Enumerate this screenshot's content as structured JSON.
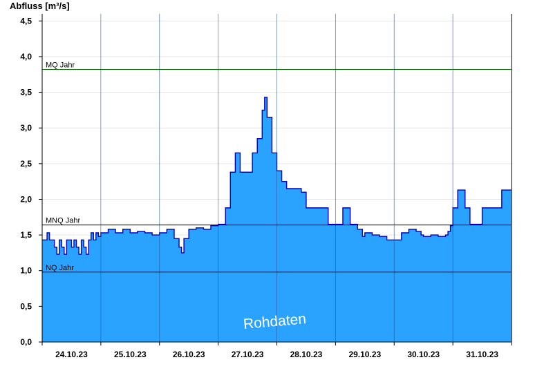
{
  "chart_data": {
    "type": "area",
    "ylabel": "Abfluss [m³/s]",
    "ylim": [
      0,
      4.6
    ],
    "yticks": [
      0.0,
      0.5,
      1.0,
      1.5,
      2.0,
      2.5,
      3.0,
      3.5,
      4.0,
      4.5
    ],
    "ytick_labels": [
      "0,0",
      "0,5",
      "1,0",
      "1,5",
      "2,0",
      "2,5",
      "3,0",
      "3,5",
      "4,0",
      "4,5"
    ],
    "xlim": [
      "2023-10-24T00:00",
      "2023-11-01T00:00"
    ],
    "day_labels": [
      "24.10.23",
      "25.10.23",
      "26.10.23",
      "27.10.23",
      "28.10.23",
      "29.10.23",
      "30.10.23",
      "31.10.23"
    ],
    "grid": true,
    "watermark": "Rohdaten",
    "series": [
      {
        "color": "#29a3ff",
        "line_color": "#0000bb",
        "x": [
          "2023-10-24T00:00",
          "2023-10-24T02:00",
          "2023-10-24T03:00",
          "2023-10-24T05:00",
          "2023-10-24T06:00",
          "2023-10-24T07:00",
          "2023-10-24T08:00",
          "2023-10-24T09:00",
          "2023-10-24T10:00",
          "2023-10-24T11:00",
          "2023-10-24T12:00",
          "2023-10-24T13:00",
          "2023-10-24T14:00",
          "2023-10-24T15:00",
          "2023-10-24T16:00",
          "2023-10-24T17:00",
          "2023-10-24T18:00",
          "2023-10-24T19:00",
          "2023-10-24T20:00",
          "2023-10-24T21:00",
          "2023-10-24T22:00",
          "2023-10-24T23:00",
          "2023-10-25T00:00",
          "2023-10-25T03:00",
          "2023-10-25T06:00",
          "2023-10-25T09:00",
          "2023-10-25T12:00",
          "2023-10-25T15:00",
          "2023-10-25T18:00",
          "2023-10-25T21:00",
          "2023-10-26T00:00",
          "2023-10-26T03:00",
          "2023-10-26T06:00",
          "2023-10-26T08:00",
          "2023-10-26T09:00",
          "2023-10-26T10:00",
          "2023-10-26T12:00",
          "2023-10-26T15:00",
          "2023-10-26T18:00",
          "2023-10-26T21:00",
          "2023-10-27T00:00",
          "2023-10-27T03:00",
          "2023-10-27T05:00",
          "2023-10-27T07:00",
          "2023-10-27T09:00",
          "2023-10-27T12:00",
          "2023-10-27T14:00",
          "2023-10-27T16:00",
          "2023-10-27T18:00",
          "2023-10-27T19:00",
          "2023-10-27T20:00",
          "2023-10-27T22:00",
          "2023-10-28T00:00",
          "2023-10-28T02:00",
          "2023-10-28T04:00",
          "2023-10-28T06:00",
          "2023-10-28T10:00",
          "2023-10-28T12:00",
          "2023-10-28T15:00",
          "2023-10-28T18:00",
          "2023-10-28T21:00",
          "2023-10-28T23:00",
          "2023-10-29T00:00",
          "2023-10-29T03:00",
          "2023-10-29T06:00",
          "2023-10-29T09:00",
          "2023-10-29T11:00",
          "2023-10-29T12:00",
          "2023-10-29T15:00",
          "2023-10-29T18:00",
          "2023-10-29T21:00",
          "2023-10-30T00:00",
          "2023-10-30T03:00",
          "2023-10-30T06:00",
          "2023-10-30T09:00",
          "2023-10-30T11:00",
          "2023-10-30T12:00",
          "2023-10-30T15:00",
          "2023-10-30T18:00",
          "2023-10-30T21:00",
          "2023-10-30T22:00",
          "2023-10-30T23:00",
          "2023-10-31T00:00",
          "2023-10-31T02:00",
          "2023-10-31T04:00",
          "2023-10-31T05:00",
          "2023-10-31T07:00",
          "2023-10-31T12:00",
          "2023-10-31T16:00",
          "2023-10-31T20:00",
          "2023-11-01T00:00"
        ],
        "y": [
          1.43,
          1.53,
          1.43,
          1.33,
          1.23,
          1.43,
          1.33,
          1.23,
          1.43,
          1.43,
          1.33,
          1.43,
          1.33,
          1.23,
          1.43,
          1.33,
          1.23,
          1.43,
          1.53,
          1.43,
          1.53,
          1.48,
          1.53,
          1.58,
          1.53,
          1.58,
          1.53,
          1.55,
          1.53,
          1.5,
          1.53,
          1.58,
          1.45,
          1.33,
          1.25,
          1.45,
          1.58,
          1.6,
          1.58,
          1.63,
          1.65,
          1.88,
          2.38,
          2.65,
          2.38,
          2.38,
          2.65,
          2.85,
          3.25,
          3.43,
          3.15,
          2.65,
          2.4,
          2.25,
          2.15,
          2.15,
          2.1,
          1.88,
          1.88,
          1.88,
          1.65,
          1.65,
          1.65,
          1.88,
          1.65,
          1.58,
          1.48,
          1.53,
          1.5,
          1.48,
          1.43,
          1.43,
          1.53,
          1.58,
          1.55,
          1.5,
          1.48,
          1.5,
          1.48,
          1.5,
          1.55,
          1.63,
          1.88,
          2.13,
          2.13,
          1.88,
          1.65,
          1.88,
          1.88,
          2.13,
          2.13
        ]
      }
    ],
    "reference_lines": [
      {
        "label": "MQ Jahr",
        "value": 3.82,
        "color": "#007000"
      },
      {
        "label": "MNQ Jahr",
        "value": 1.64,
        "color": "#000000"
      },
      {
        "label": "NQ Jahr",
        "value": 0.98,
        "color": "#000000"
      }
    ]
  }
}
